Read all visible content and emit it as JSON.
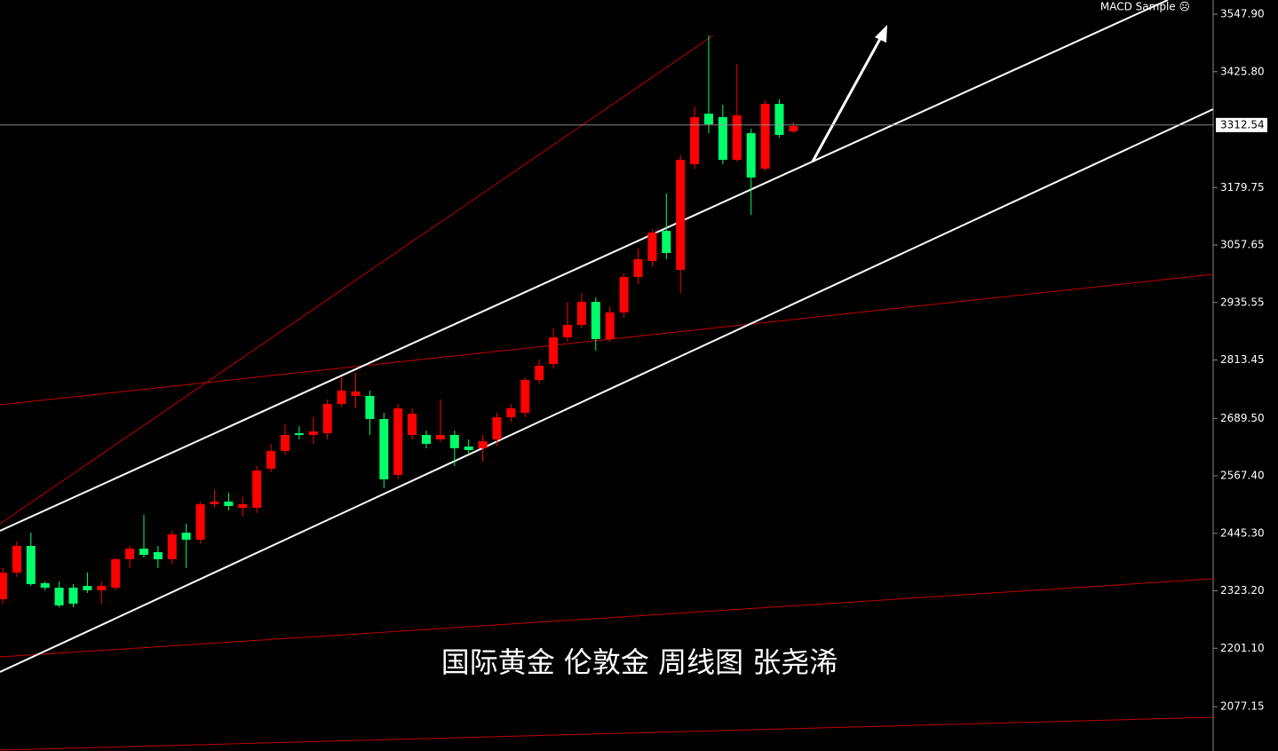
{
  "chart_data": {
    "type": "candlestick",
    "indicator": "MACD Sample ☹",
    "caption": "国际黄金 伦敦金 周线图 张尧浠",
    "last_price": 3312.54,
    "up_color": "#ff0000",
    "down_color": "#00ff6a",
    "ylim": [
      1982.9,
      3578.1
    ],
    "yticks": [
      {
        "value": 3547.9,
        "label": "3547.90"
      },
      {
        "value": 3425.8,
        "label": "3425.80"
      },
      3179.75,
      3057.65,
      2935.55,
      2813.45,
      {
        "value": 2689.5,
        "label": "2689.50"
      },
      {
        "value": 2567.4,
        "label": "2567.40"
      },
      {
        "value": 2445.3,
        "label": "2445.30"
      },
      {
        "value": 2323.2,
        "label": "2323.20"
      },
      {
        "value": 2201.1,
        "label": "2201.10"
      },
      2077.15
    ],
    "open": [
      2305.3,
      2361.9,
      2418.5,
      2339.3,
      2329.8,
      2329.8,
      2333.6,
      2324.2,
      2329.8,
      2390.2,
      2412.8,
      2405.3,
      2390.2,
      2446.7,
      2431.7,
      2507.1,
      2512.7,
      2499.5,
      2499.5,
      2582.5,
      2620.2,
      2657.9,
      2654.2,
      2657.9,
      2720.1,
      2737.1,
      2737.1,
      2688.1,
      2569.3,
      2654.2,
      2654.2,
      2644.7,
      2654.2,
      2629.6,
      2625.9,
      2644.7,
      2691.9,
      2701.3,
      2771.1,
      2805.0,
      2861.6,
      2888.0,
      2937.0,
      2857.8,
      2914.4,
      2989.8,
      3023.7,
      3087.8,
      3004.9,
      3229.3,
      3336.7,
      3329.2,
      3238.7,
      3295.3,
      3219.8,
      3357.5,
      3299.0
    ],
    "high": [
      2371.3,
      2427.9,
      2446.7,
      2343.0,
      2343.0,
      2337.4,
      2361.9,
      2343.0,
      2393.9,
      2418.5,
      2484.5,
      2418.5,
      2450.5,
      2465.6,
      2512.7,
      2537.2,
      2531.6,
      2522.2,
      2588.2,
      2635.3,
      2676.8,
      2673.0,
      2691.9,
      2729.6,
      2776.7,
      2786.1,
      2748.4,
      2701.3,
      2720.1,
      2710.7,
      2663.6,
      2729.6,
      2663.6,
      2644.7,
      2654.2,
      2701.3,
      2720.1,
      2776.7,
      2814.4,
      2880.4,
      2937.0,
      2955.9,
      2946.4,
      2927.6,
      2997.3,
      3050.1,
      3091.6,
      3167.0,
      3248.1,
      3351.8,
      3502.7,
      3355.6,
      3442.3,
      3304.7,
      3365.0,
      3366.9,
      3317.9
    ],
    "low": [
      2295.9,
      2352.5,
      2333.6,
      2324.2,
      2288.3,
      2288.3,
      2318.5,
      2295.9,
      2324.2,
      2371.3,
      2393.9,
      2371.3,
      2380.7,
      2371.3,
      2424.1,
      2499.5,
      2493.9,
      2480.7,
      2488.2,
      2575.0,
      2612.7,
      2644.7,
      2635.3,
      2644.7,
      2714.5,
      2710.7,
      2654.2,
      2541.0,
      2559.9,
      2644.7,
      2625.9,
      2639.1,
      2588.2,
      2612.7,
      2597.6,
      2631.5,
      2682.4,
      2691.9,
      2763.5,
      2795.6,
      2852.1,
      2880.4,
      2833.3,
      2852.1,
      2903.1,
      2974.7,
      3012.4,
      3027.5,
      2955.9,
      3219.8,
      3295.3,
      3229.3,
      3234.9,
      3121.8,
      3214.2,
      3285.8,
      3295.3
    ],
    "close": [
      2361.9,
      2418.5,
      2337.4,
      2329.8,
      2292.1,
      2295.9,
      2324.2,
      2333.6,
      2390.2,
      2412.8,
      2399.6,
      2390.2,
      2443.0,
      2431.7,
      2507.1,
      2512.7,
      2503.3,
      2507.1,
      2578.7,
      2620.2,
      2654.2,
      2654.2,
      2661.7,
      2720.1,
      2748.4,
      2746.5,
      2688.1,
      2559.9,
      2710.7,
      2699.4,
      2635.3,
      2654.2,
      2625.9,
      2622.1,
      2641.0,
      2691.9,
      2710.7,
      2771.1,
      2801.2,
      2861.6,
      2888.0,
      2937.0,
      2857.8,
      2914.4,
      2989.8,
      3027.5,
      3084.1,
      3040.7,
      3238.7,
      3329.2,
      3314.1,
      3238.7,
      3333.0,
      3201.0,
      3357.5,
      3291.5,
      3310.3
    ]
  }
}
